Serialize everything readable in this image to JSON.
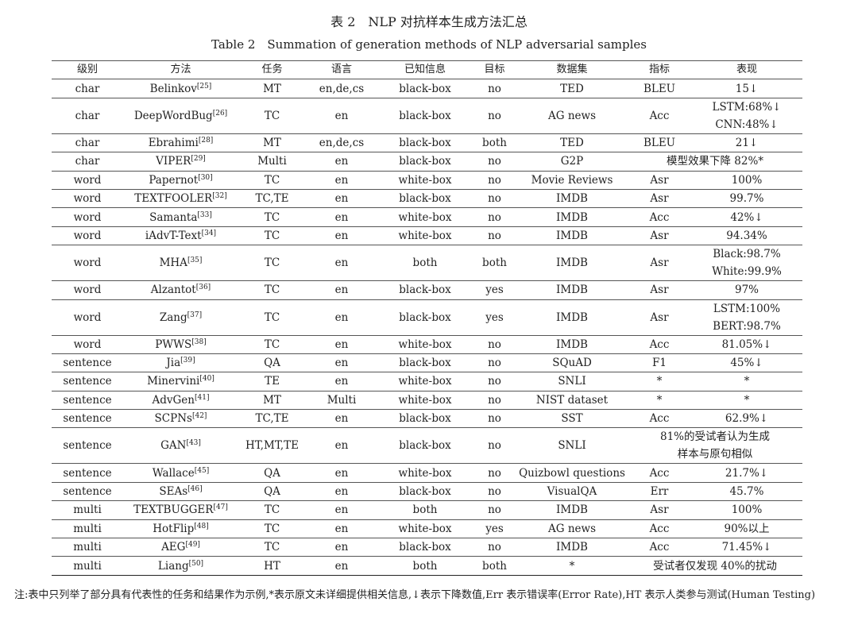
{
  "title": "表 2　NLP 对抗样本生成方法汇总",
  "subtitle": "Table 2　Summation of generation methods of NLP adversarial samples",
  "table": {
    "header": [
      "级别",
      "方法",
      "任务",
      "语言",
      "已知信息",
      "目标",
      "数据集",
      "指标",
      "表现"
    ],
    "rows": [
      [
        "char",
        {
          "name": "Belinkov",
          "ref": "[25]"
        },
        "MT",
        "en,de,cs",
        "black-box",
        "no",
        "TED",
        "BLEU",
        "15↓"
      ],
      [
        "char",
        {
          "name": "DeepWordBug",
          "ref": "[26]"
        },
        "TC",
        "en",
        "black-box",
        "no",
        "AG news",
        "Acc",
        [
          "LSTM:68%↓",
          "CNN:48%↓"
        ]
      ],
      [
        "char",
        {
          "name": "Ebrahimi",
          "ref": "[28]"
        },
        "MT",
        "en,de,cs",
        "black-box",
        "both",
        "TED",
        "BLEU",
        "21↓"
      ],
      [
        "char",
        {
          "name": "VIPER",
          "ref": "[29]"
        },
        "Multi",
        "en",
        "black-box",
        "no",
        "G2P",
        "模型效果下降 82%*"
      ],
      [
        "word",
        {
          "name": "Papernot",
          "ref": "[30]"
        },
        "TC",
        "en",
        "white-box",
        "no",
        "Movie Reviews",
        "Asr",
        "100%"
      ],
      [
        "word",
        {
          "name": "TEXTFOOLER",
          "ref": "[32]"
        },
        "TC,TE",
        "en",
        "black-box",
        "no",
        "IMDB",
        "Asr",
        "99.7%"
      ],
      [
        "word",
        {
          "name": "Samanta",
          "ref": "[33]"
        },
        "TC",
        "en",
        "white-box",
        "no",
        "IMDB",
        "Acc",
        "42%↓"
      ],
      [
        "word",
        {
          "name": "iAdvT-Text",
          "ref": "[34]"
        },
        "TC",
        "en",
        "white-box",
        "no",
        "IMDB",
        "Asr",
        "94.34%"
      ],
      [
        "word",
        {
          "name": "MHA",
          "ref": "[35]"
        },
        "TC",
        "en",
        "both",
        "both",
        "IMDB",
        "Asr",
        [
          "Black:98.7%",
          "White:99.9%"
        ]
      ],
      [
        "word",
        {
          "name": "Alzantot",
          "ref": "[36]"
        },
        "TC",
        "en",
        "black-box",
        "yes",
        "IMDB",
        "Asr",
        "97%"
      ],
      [
        "word",
        {
          "name": "Zang",
          "ref": "[37]"
        },
        "TC",
        "en",
        "black-box",
        "yes",
        "IMDB",
        "Asr",
        [
          "LSTM:100%",
          "BERT:98.7%"
        ]
      ],
      [
        "word",
        {
          "name": "PWWS",
          "ref": "[38]"
        },
        "TC",
        "en",
        "white-box",
        "no",
        "IMDB",
        "Acc",
        "81.05%↓"
      ],
      [
        "sentence",
        {
          "name": "Jia",
          "ref": "[39]"
        },
        "QA",
        "en",
        "black-box",
        "no",
        "SQuAD",
        "F1",
        "45%↓"
      ],
      [
        "sentence",
        {
          "name": "Minervini",
          "ref": "[40]"
        },
        "TE",
        "en",
        "white-box",
        "no",
        "SNLI",
        "*",
        "*"
      ],
      [
        "sentence",
        {
          "name": "AdvGen",
          "ref": "[41]"
        },
        "MT",
        "Multi",
        "white-box",
        "no",
        "NIST dataset",
        "*",
        "*"
      ],
      [
        "sentence",
        {
          "name": "SCPNs",
          "ref": "[42]"
        },
        "TC,TE",
        "en",
        "black-box",
        "no",
        "SST",
        "Acc",
        "62.9%↓"
      ],
      [
        "sentence",
        {
          "name": "GAN",
          "ref": "[43]"
        },
        "HT,MT,TE",
        "en",
        "black-box",
        "no",
        "SNLI",
        [
          "81%的受试者认为生成",
          "样本与原句相似"
        ]
      ],
      [
        "sentence",
        {
          "name": "Wallace",
          "ref": "[45]"
        },
        "QA",
        "en",
        "white-box",
        "no",
        "Quizbowl questions",
        "Acc",
        "21.7%↓"
      ],
      [
        "sentence",
        {
          "name": "SEAs",
          "ref": "[46]"
        },
        "QA",
        "en",
        "black-box",
        "no",
        "VisualQA",
        "Err",
        "45.7%"
      ],
      [
        "multi",
        {
          "name": "TEXTBUGGER",
          "ref": "[47]"
        },
        "TC",
        "en",
        "both",
        "no",
        "IMDB",
        "Asr",
        "100%"
      ],
      [
        "multi",
        {
          "name": "HotFlip",
          "ref": "[48]"
        },
        "TC",
        "en",
        "white-box",
        "yes",
        "AG news",
        "Acc",
        "90%以上"
      ],
      [
        "multi",
        {
          "name": "AEG",
          "ref": "[49]"
        },
        "TC",
        "en",
        "black-box",
        "no",
        "IMDB",
        "Acc",
        "71.45%↓"
      ],
      [
        "multi",
        {
          "name": "Liang",
          "ref": "[50]"
        },
        "HT",
        "en",
        "both",
        "both",
        "*",
        "受试者仅发现 40%的扰动"
      ]
    ]
  },
  "note": "注:表中只列举了部分具有代表性的任务和结果作为示例,*表示原文未详细提供相关信息,↓表示下降数值,Err 表示错误率(Error Rate),HT 表示人类参与测试(Human Testing)"
}
